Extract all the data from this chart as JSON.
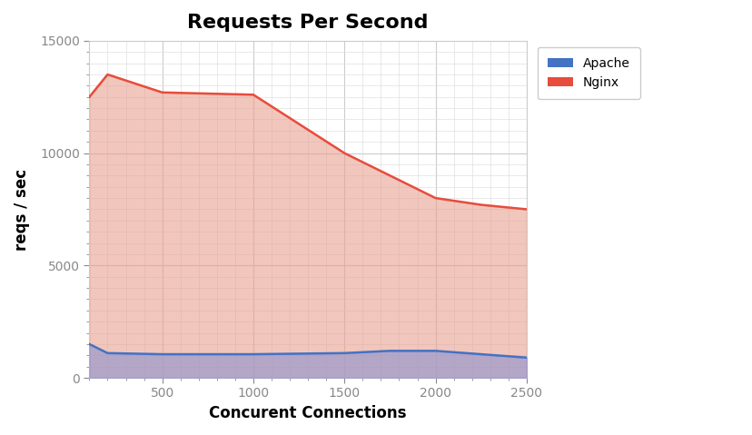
{
  "title": "Requests Per Second",
  "xlabel": "Concurent Connections",
  "ylabel": "reqs / sec",
  "xlim": [
    100,
    2500
  ],
  "ylim": [
    0,
    15000
  ],
  "xticks": [
    500,
    1000,
    1500,
    2000,
    2500
  ],
  "yticks": [
    0,
    5000,
    10000,
    15000
  ],
  "x_minor_ticks": 5,
  "y_minor_ticks": 5,
  "apache_x": [
    100,
    200,
    500,
    1000,
    1500,
    1750,
    2000,
    2250,
    2500
  ],
  "apache_y": [
    1500,
    1100,
    1050,
    1050,
    1100,
    1200,
    1200,
    1050,
    900
  ],
  "nginx_x": [
    100,
    200,
    500,
    1000,
    1500,
    1750,
    2000,
    2250,
    2500
  ],
  "nginx_y": [
    12500,
    13500,
    12700,
    12600,
    10000,
    9000,
    8000,
    7700,
    7500
  ],
  "apache_line_color": "#4472C4",
  "apache_fill_color": "#9999cc",
  "nginx_line_color": "#E74C3C",
  "nginx_fill_color": "#E8A090",
  "background_color": "#ffffff",
  "major_grid_color": "#cccccc",
  "minor_grid_color": "#e0e0e0",
  "title_fontsize": 16,
  "label_fontsize": 12,
  "tick_fontsize": 10,
  "tick_color": "#888888",
  "legend_labels": [
    "Apache",
    "Nginx"
  ],
  "legend_line_colors": [
    "#4472C4",
    "#E74C3C"
  ]
}
